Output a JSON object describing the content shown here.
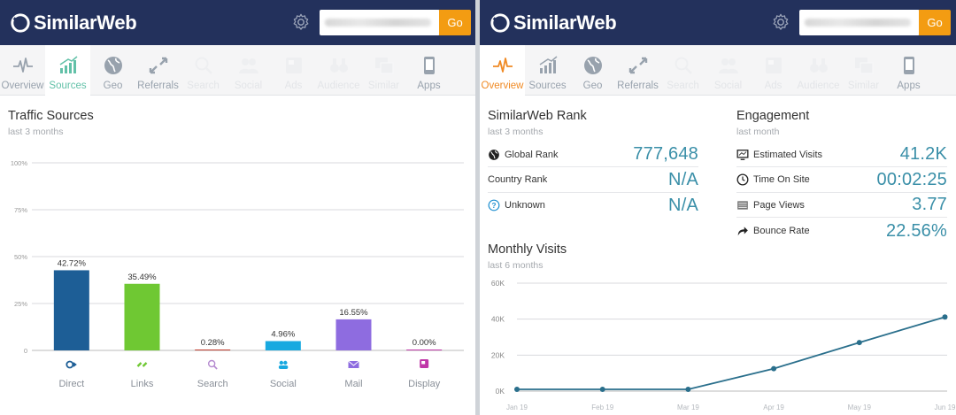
{
  "brand": {
    "name": "SimilarWeb",
    "header_color": "#23315c",
    "go_color": "#f39c12"
  },
  "search": {
    "placeholder": "",
    "go_label": "Go"
  },
  "nav_tabs": [
    {
      "label": "Overview",
      "icon": "pulse-icon"
    },
    {
      "label": "Sources",
      "icon": "bar-growth-icon"
    },
    {
      "label": "Geo",
      "icon": "globe-icon"
    },
    {
      "label": "Referrals",
      "icon": "arrows-icon"
    },
    {
      "label": "Search",
      "icon": "magnifier-icon"
    },
    {
      "label": "Social",
      "icon": "people-icon"
    },
    {
      "label": "Ads",
      "icon": "ad-icon"
    },
    {
      "label": "Audience",
      "icon": "binoculars-icon"
    },
    {
      "label": "Similar",
      "icon": "windows-icon"
    },
    {
      "label": "Apps",
      "icon": "phone-icon"
    }
  ],
  "left": {
    "active_tab": "Sources",
    "traffic": {
      "title": "Traffic Sources",
      "subtitle": "last 3 months"
    }
  },
  "right": {
    "active_tab": "Overview",
    "rank": {
      "title": "SimilarWeb Rank",
      "subtitle": "last 3 months",
      "rows": [
        {
          "label": "Global Rank",
          "value": "777,648",
          "icon": "globe-icon"
        },
        {
          "label": "Country Rank",
          "value": "N/A",
          "icon": ""
        },
        {
          "label": "Unknown",
          "value": "N/A",
          "icon": "question-icon"
        }
      ]
    },
    "engagement": {
      "title": "Engagement",
      "subtitle": "last month",
      "rows": [
        {
          "label": "Estimated Visits",
          "value": "41.2K",
          "icon": "monitor-icon"
        },
        {
          "label": "Time On Site",
          "value": "00:02:25",
          "icon": "clock-icon"
        },
        {
          "label": "Page Views",
          "value": "3.77",
          "icon": "pages-icon"
        },
        {
          "label": "Bounce Rate",
          "value": "22.56%",
          "icon": "bounce-arrow-icon"
        }
      ]
    },
    "monthly": {
      "title": "Monthly Visits",
      "subtitle": "last 6 months"
    }
  },
  "chart_data": [
    {
      "type": "bar",
      "title": "Traffic Sources",
      "categories": [
        "Direct",
        "Links",
        "Search",
        "Social",
        "Mail",
        "Display"
      ],
      "values": [
        42.72,
        35.49,
        0.28,
        4.96,
        16.55,
        0.0
      ],
      "value_labels": [
        "42.72%",
        "35.49%",
        "0.28%",
        "4.96%",
        "16.55%",
        "0.00%"
      ],
      "colors": [
        "#1d5e96",
        "#6fc833",
        "#c0392b",
        "#18a9e0",
        "#8e6ce0",
        "#c036a8"
      ],
      "category_icons": [
        "direct-icon",
        "links-icon",
        "search-icon",
        "social-icon",
        "mail-icon",
        "display-icon"
      ],
      "ylim": [
        0,
        100
      ],
      "yticks": [
        0,
        25,
        50,
        75,
        100
      ],
      "ytick_labels": [
        "0",
        "25%",
        "50%",
        "75%",
        "100%"
      ]
    },
    {
      "type": "line",
      "title": "Monthly Visits",
      "x": [
        "Jan 19",
        "Feb 19",
        "Mar 19",
        "Apr 19",
        "May 19",
        "Jun 19"
      ],
      "values": [
        1000,
        1000,
        1000,
        12500,
        27000,
        41200
      ],
      "color": "#2a6f8c",
      "ylim": [
        0,
        60000
      ],
      "yticks": [
        0,
        20000,
        40000,
        60000
      ],
      "ytick_labels": [
        "0K",
        "20K",
        "40K",
        "60K"
      ]
    }
  ]
}
